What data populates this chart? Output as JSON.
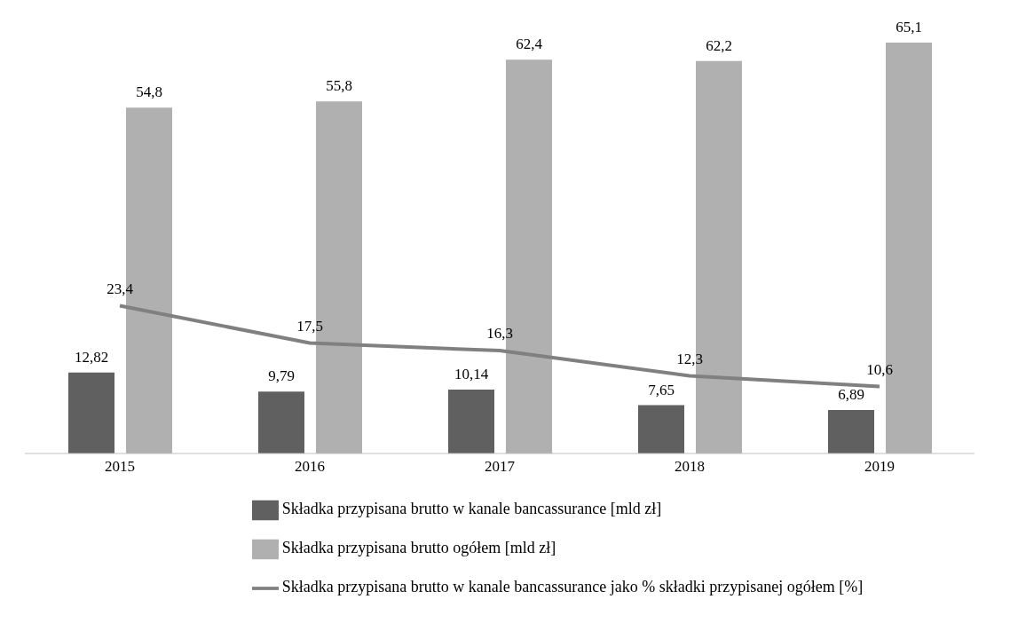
{
  "chart_data": {
    "type": "bar",
    "categories": [
      "2015",
      "2016",
      "2017",
      "2018",
      "2019"
    ],
    "series": [
      {
        "name": "Składka przypisana brutto w kanale bancassurance [mld zł]",
        "color": "#606060",
        "values": [
          12.82,
          9.79,
          10.14,
          7.65,
          6.89
        ],
        "value_labels": [
          "12,82",
          "9,79",
          "10,14",
          "7,65",
          "6,89"
        ]
      },
      {
        "name": "Składka przypisana brutto ogółem [mld zł]",
        "color": "#b0b0b0",
        "values": [
          54.8,
          55.8,
          62.4,
          62.2,
          65.1
        ],
        "value_labels": [
          "54,8",
          "55,8",
          "62,4",
          "62,2",
          "65,1"
        ]
      },
      {
        "name": "Składka przypisana brutto w kanale bancassurance jako % składki przypisanej ogółem [%]",
        "type": "line",
        "color": "#808080",
        "values": [
          23.4,
          17.5,
          16.3,
          12.3,
          10.6
        ],
        "value_labels": [
          "23,4",
          "17,5",
          "16,3",
          "12,3",
          "10,6"
        ]
      }
    ],
    "legend": "bottom",
    "marker": "none",
    "line_style": "solid"
  }
}
